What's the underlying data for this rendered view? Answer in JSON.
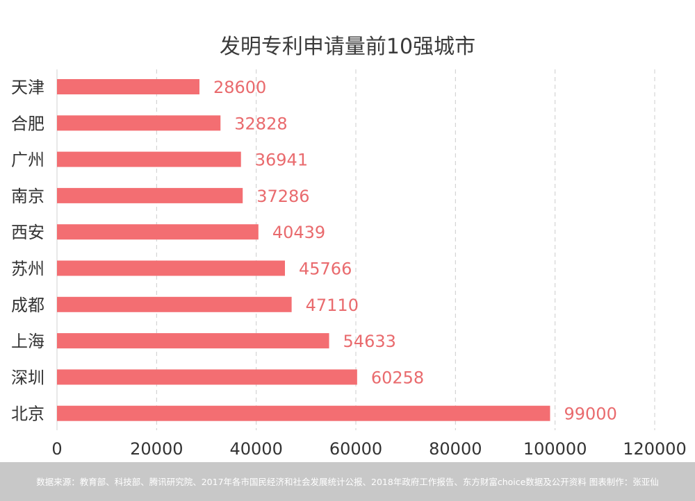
{
  "chart_data": {
    "type": "bar",
    "orientation": "horizontal",
    "title": "发明专利申请量前10强城市",
    "categories": [
      "天津",
      "合肥",
      "广州",
      "南京",
      "西安",
      "苏州",
      "成都",
      "上海",
      "深圳",
      "北京"
    ],
    "values": [
      28600,
      32828,
      36941,
      37286,
      40439,
      45766,
      47110,
      54633,
      60258,
      99000
    ],
    "xlim": [
      0,
      120000
    ],
    "xticks": [
      "0",
      "20000",
      "40000",
      "60000",
      "80000",
      "100000",
      "120000"
    ],
    "grid": "vertical dashed",
    "data_labels": true,
    "xlabel": "",
    "ylabel": ""
  },
  "colors": {
    "bar": "#f36e72",
    "data_label": "#e96a6d",
    "grid": "#cccccc",
    "footer_bg": "#c8c8c8"
  },
  "footer": {
    "text": "数据来源：教育部、科技部、腾讯研究院、2017年各市国民经济和社会发展统计公报、2018年政府工作报告、东方财富choice数据及公开资料  图表制作：张亚仙"
  }
}
